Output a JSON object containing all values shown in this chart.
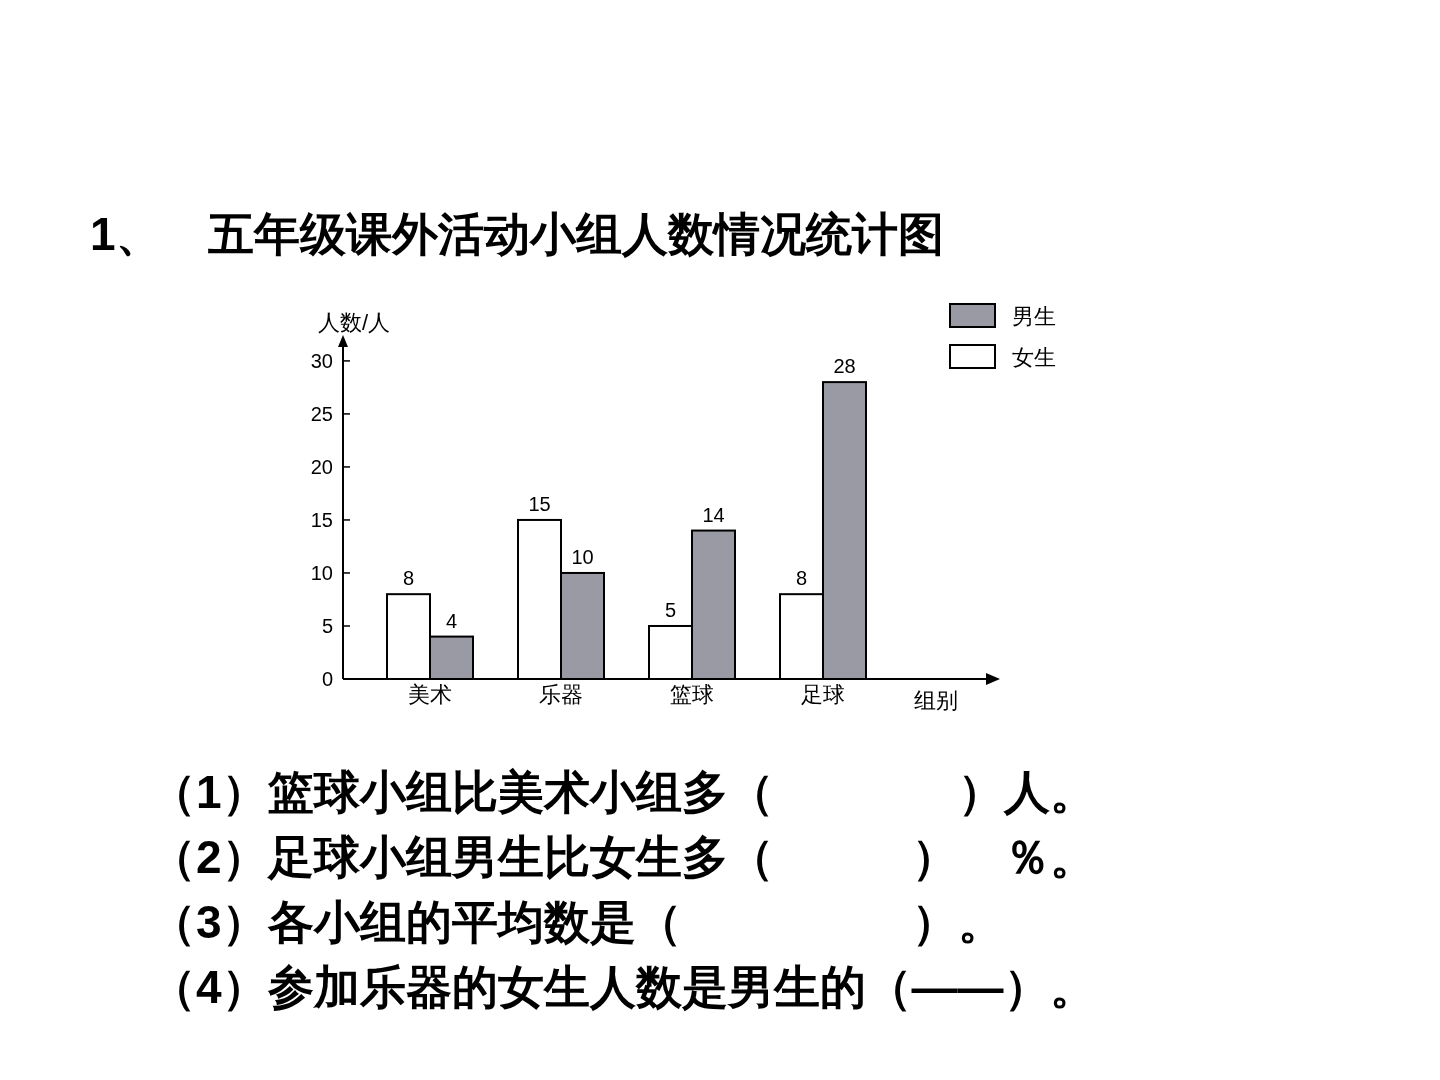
{
  "chart_data": {
    "type": "bar",
    "title": "1、　五年级课外活动小组人数情况统计图",
    "categories": [
      "美术",
      "乐器",
      "篮球",
      "足球"
    ],
    "series": [
      {
        "name": "女生",
        "color": "#ffffff",
        "values": [
          8,
          15,
          5,
          8
        ]
      },
      {
        "name": "男生",
        "color": "#9a9aa4",
        "values": [
          4,
          10,
          14,
          28
        ]
      }
    ],
    "ylabel": "人数/人",
    "xlabel": "组别",
    "ylim": [
      0,
      31.5
    ],
    "yticks": [
      0,
      5,
      10,
      15,
      20,
      25,
      30
    ],
    "data_labels": true,
    "legend": "top right",
    "annotations": [
      "（1）篮球小组比美术小组多（　　　　）人。",
      "（2）足球小组男生比女生多（　　　）　％。",
      "（3）各小组的平均数是（　　　　　）。",
      "（4）参加乐器的女生人数是男生的（——）。"
    ]
  }
}
